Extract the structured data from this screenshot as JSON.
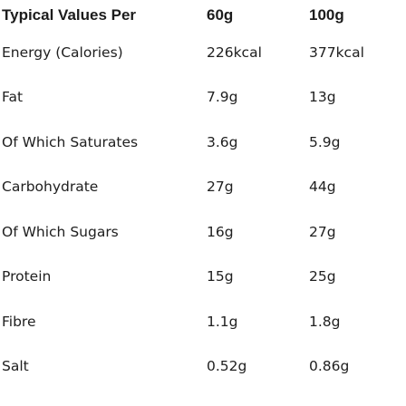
{
  "table": {
    "headers": {
      "label": "Typical Values Per",
      "per_60g": "60g",
      "per_100g": "100g"
    },
    "rows": [
      {
        "name": "Energy (Calories)",
        "per_60g": "226kcal",
        "per_100g": "377kcal"
      },
      {
        "name": "Fat",
        "per_60g": "7.9g",
        "per_100g": "13g"
      },
      {
        "name": "Of Which Saturates",
        "per_60g": "3.6g",
        "per_100g": "5.9g"
      },
      {
        "name": "Carbohydrate",
        "per_60g": "27g",
        "per_100g": "44g"
      },
      {
        "name": "Of Which Sugars",
        "per_60g": "16g",
        "per_100g": "27g"
      },
      {
        "name": "Protein",
        "per_60g": "15g",
        "per_100g": "25g"
      },
      {
        "name": "Fibre",
        "per_60g": "1.1g",
        "per_100g": "1.8g"
      },
      {
        "name": "Salt",
        "per_60g": "0.52g",
        "per_100g": "0.86g"
      }
    ]
  }
}
